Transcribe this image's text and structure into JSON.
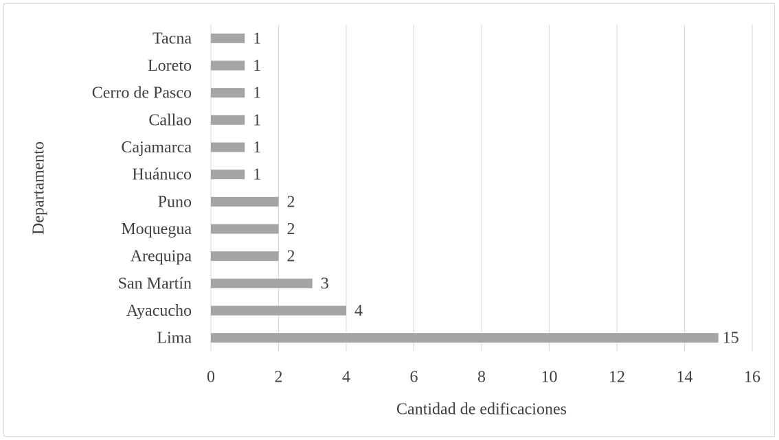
{
  "chart_data": {
    "type": "bar",
    "orientation": "horizontal",
    "x_label": "Cantidad de edificaciones",
    "y_label": "Departamento",
    "categories": [
      "Lima",
      "Ayacucho",
      "San Martín",
      "Arequipa",
      "Moquegua",
      "Puno",
      "Huánuco",
      "Cajamarca",
      "Callao",
      "Cerro de Pasco",
      "Loreto",
      "Tacna"
    ],
    "values": [
      15,
      4,
      3,
      2,
      2,
      2,
      1,
      1,
      1,
      1,
      1,
      1
    ],
    "color": "#a5a5a5",
    "xlim": [
      0,
      16
    ],
    "xticks": [
      0,
      2,
      4,
      6,
      8,
      10,
      12,
      14,
      16
    ],
    "grid": true
  }
}
